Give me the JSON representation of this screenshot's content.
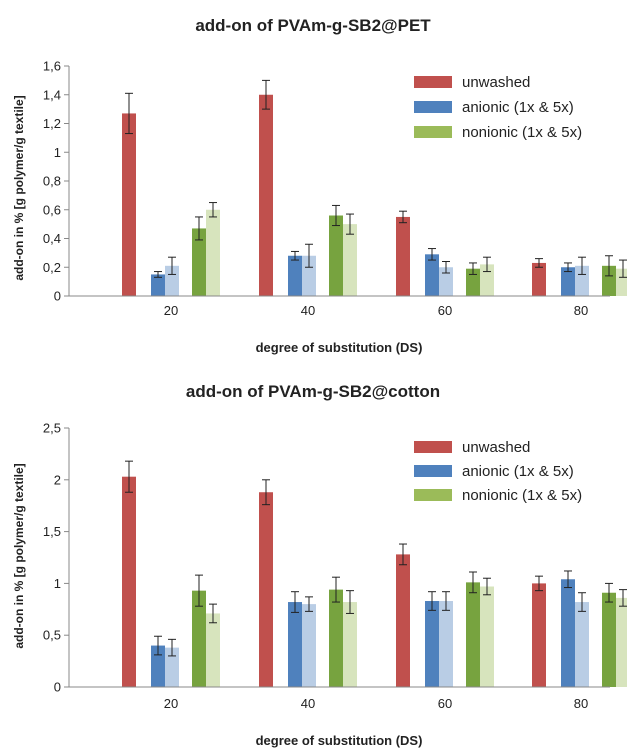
{
  "chart_data": [
    {
      "type": "bar",
      "title": "add-on of PVAm-g-SB2@PET",
      "xlabel": "degree of substitution (DS)",
      "ylabel": "add-on in % [g polymer/g textile]",
      "ylim": [
        0,
        1.6
      ],
      "yticks": [
        "0",
        "0,2",
        "0,4",
        "0,6",
        "0,8",
        "1",
        "1,2",
        "1,4",
        "1,6"
      ],
      "grid": false,
      "legend_position": "top-right",
      "categories": [
        "20",
        "40",
        "60",
        "80"
      ],
      "legend": [
        "unwashed",
        "anionic (1x & 5x)",
        "nonionic (1x & 5x)"
      ],
      "series": [
        {
          "group": "unwashed",
          "shade": "dark",
          "color": "#c0504d",
          "values": [
            1.27,
            1.4,
            0.55,
            0.23
          ],
          "errors": [
            0.14,
            0.1,
            0.04,
            0.03
          ]
        },
        {
          "group": "anionic",
          "shade": "dark",
          "color": "#4f81bd",
          "values": [
            0.15,
            0.28,
            0.29,
            0.2
          ],
          "errors": [
            0.02,
            0.03,
            0.04,
            0.03
          ]
        },
        {
          "group": "anionic",
          "shade": "light",
          "color": "#b9cde5",
          "values": [
            0.21,
            0.28,
            0.2,
            0.21
          ],
          "errors": [
            0.06,
            0.08,
            0.04,
            0.06
          ]
        },
        {
          "group": "nonionic",
          "shade": "dark",
          "color": "#77a33f",
          "values": [
            0.47,
            0.56,
            0.19,
            0.21
          ],
          "errors": [
            0.08,
            0.07,
            0.04,
            0.07
          ]
        },
        {
          "group": "nonionic",
          "shade": "light",
          "color": "#d7e4bd",
          "values": [
            0.6,
            0.5,
            0.22,
            0.19
          ],
          "errors": [
            0.05,
            0.07,
            0.05,
            0.06
          ]
        }
      ]
    },
    {
      "type": "bar",
      "title": "add-on of PVAm-g-SB2@cotton",
      "xlabel": "degree of substitution (DS)",
      "ylabel": "add-on in % [g polymer/g textile]",
      "ylim": [
        0,
        2.5
      ],
      "yticks": [
        "0",
        "0,5",
        "1",
        "1,5",
        "2",
        "2,5"
      ],
      "grid": false,
      "legend_position": "top-right",
      "categories": [
        "20",
        "40",
        "60",
        "80"
      ],
      "legend": [
        "unwashed",
        "anionic (1x & 5x)",
        "nonionic (1x & 5x)"
      ],
      "series": [
        {
          "group": "unwashed",
          "shade": "dark",
          "color": "#c0504d",
          "values": [
            2.03,
            1.88,
            1.28,
            1.0
          ],
          "errors": [
            0.15,
            0.12,
            0.1,
            0.07
          ]
        },
        {
          "group": "anionic",
          "shade": "dark",
          "color": "#4f81bd",
          "values": [
            0.4,
            0.82,
            0.83,
            1.04
          ],
          "errors": [
            0.09,
            0.1,
            0.09,
            0.08
          ]
        },
        {
          "group": "anionic",
          "shade": "light",
          "color": "#b9cde5",
          "values": [
            0.38,
            0.8,
            0.83,
            0.82
          ],
          "errors": [
            0.08,
            0.07,
            0.09,
            0.09
          ]
        },
        {
          "group": "nonionic",
          "shade": "dark",
          "color": "#77a33f",
          "values": [
            0.93,
            0.94,
            1.01,
            0.91
          ],
          "errors": [
            0.15,
            0.12,
            0.1,
            0.09
          ]
        },
        {
          "group": "nonionic",
          "shade": "light",
          "color": "#d7e4bd",
          "values": [
            0.71,
            0.82,
            0.97,
            0.86
          ],
          "errors": [
            0.09,
            0.11,
            0.08,
            0.08
          ]
        }
      ]
    }
  ]
}
